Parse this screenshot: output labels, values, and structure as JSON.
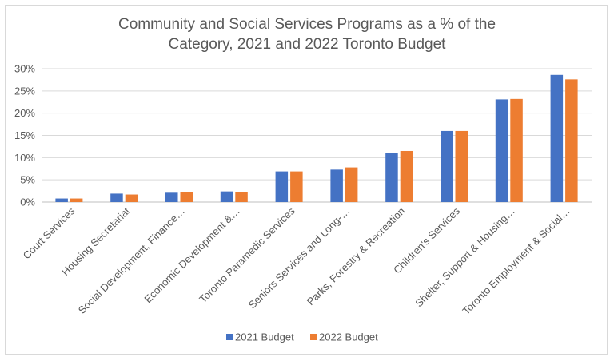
{
  "chart_data": {
    "type": "bar",
    "title_lines": [
      "Community and Social Services Programs as a % of the",
      "Category, 2021 and 2022 Toronto Budget"
    ],
    "categories": [
      "Court Services",
      "Housing Secretariat",
      "Social Development, Finance…",
      "Economic Development &…",
      "Toronto Paramedic Services",
      "Seniors Services and Long-…",
      "Parks, Forestry & Recreation",
      "Children's Services",
      "Shelter, Support & Housing…",
      "Toronto Employment & Social…"
    ],
    "series": [
      {
        "name": "2021 Budget",
        "color": "#4472c4",
        "values": [
          0.8,
          1.9,
          2.1,
          2.4,
          6.9,
          7.3,
          11.0,
          16.0,
          23.1,
          28.6
        ]
      },
      {
        "name": "2022 Budget",
        "color": "#ed7d31",
        "values": [
          0.8,
          1.7,
          2.2,
          2.3,
          6.9,
          7.8,
          11.5,
          16.0,
          23.2,
          27.6
        ]
      }
    ],
    "yticks": [
      "0%",
      "5%",
      "10%",
      "15%",
      "20%",
      "25%",
      "30%"
    ],
    "ylim": [
      0,
      30
    ],
    "grid": true,
    "legend_position": "bottom"
  }
}
